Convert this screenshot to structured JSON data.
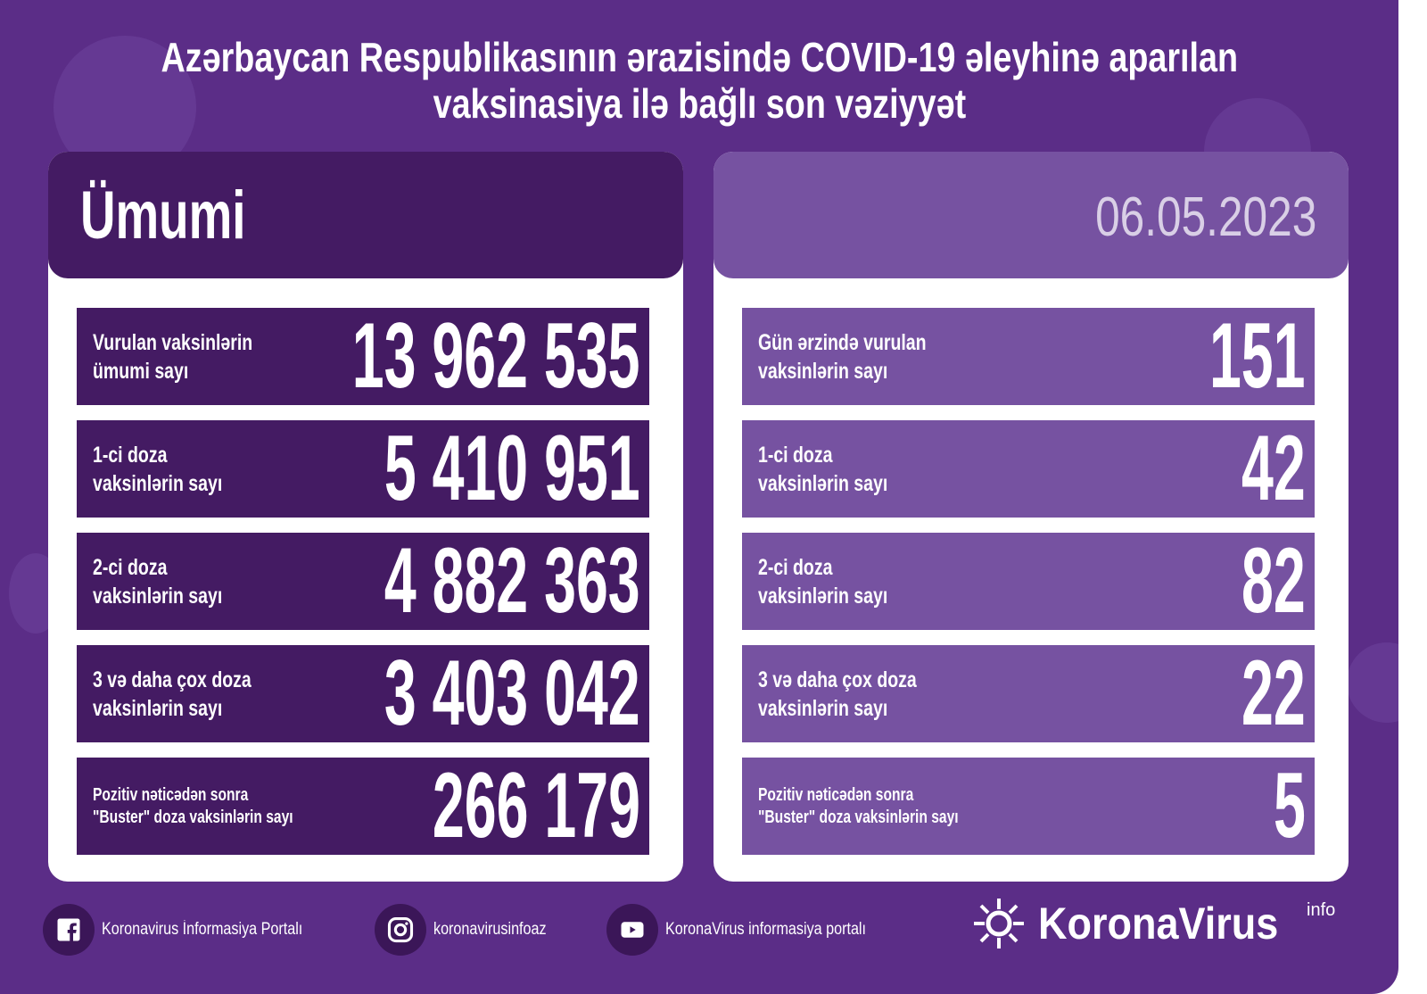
{
  "title_line1": "Azərbaycan Respublikasının ərazisində COVID-19 əleyhinə aparılan",
  "title_line2": "vaksinasiya ilə bağlı son vəziyyət",
  "left": {
    "heading": "Ümumi",
    "rows": [
      {
        "label": "Vurulan vaksinlərin\nümumi sayı",
        "value": "13 962 535"
      },
      {
        "label": "1-ci doza\nvaksinlərin sayı",
        "value": "5 410 951"
      },
      {
        "label": "2-ci doza\nvaksinlərin sayı",
        "value": "4 882 363"
      },
      {
        "label": "3 və daha çox doza\nvaksinlərin sayı",
        "value": "3 403 042"
      },
      {
        "label": "Pozitiv nəticədən sonra\n\"Buster\" doza vaksinlərin sayı",
        "value": "266 179"
      }
    ]
  },
  "right": {
    "date": "06.05.2023",
    "rows": [
      {
        "label": "Gün ərzində vurulan\nvaksinlərin sayı",
        "value": "151"
      },
      {
        "label": "1-ci doza\nvaksinlərin sayı",
        "value": "42"
      },
      {
        "label": "2-ci doza\nvaksinlərin sayı",
        "value": "82"
      },
      {
        "label": "3 və daha çox doza\nvaksinlərin sayı",
        "value": "22"
      },
      {
        "label": "Pozitiv nəticədən sonra\n\"Buster\" doza vaksinlərin sayı",
        "value": "5"
      }
    ]
  },
  "footer": {
    "facebook": "Koronavirus İnformasiya Portalı",
    "instagram": "koronavirusinfoaz",
    "youtube": "KoronaVirus informasiya portalı"
  },
  "logo": {
    "name": "KoronaVirus",
    "suffix": "info"
  },
  "colors": {
    "background": "#5b2d87",
    "dark_panel": "#441b63",
    "light_panel": "#7652a1"
  }
}
